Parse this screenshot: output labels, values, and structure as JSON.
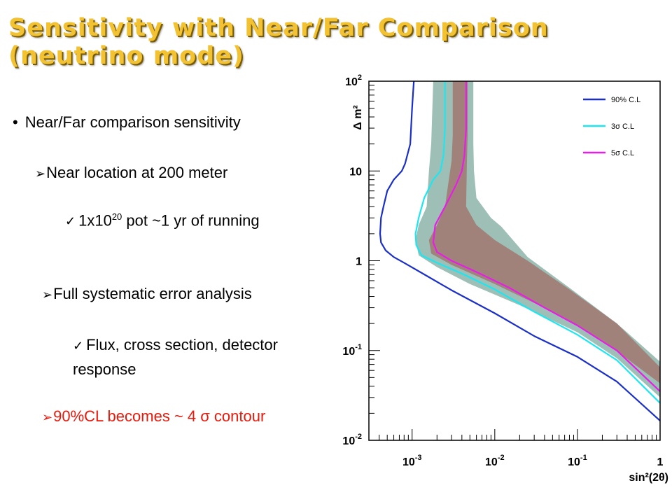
{
  "slide": {
    "title_line1": "Sensitivity with Near/Far Comparison",
    "title_line2": "(neutrino mode)",
    "bullets": {
      "b1_marker": "•",
      "b1": "Near/Far comparison sensitivity",
      "b2_marker": "➢",
      "b2": "Near location at 200 meter",
      "b3_marker": "✓",
      "b3_pre": "1x10",
      "b3_sup": "20",
      "b3_post": " pot ~1 yr of running",
      "b4_marker": "➢",
      "b4": "Full systematic error analysis",
      "b5_marker": "✓",
      "b5_line1": "Flux, cross section, detector",
      "b5_line2": "response",
      "b6_marker": "➢",
      "b6": "90%CL becomes ~ 4 σ contour"
    },
    "colors": {
      "title": "#f2c233",
      "highlight": "#e8190b"
    }
  },
  "chart_data": {
    "type": "line",
    "title": "",
    "xlabel": "sin²(2θ)",
    "ylabel": "Δ m²",
    "x_scale": "log",
    "y_scale": "log",
    "xlim": [
      0.0003,
      1
    ],
    "ylim": [
      0.01,
      100
    ],
    "x_ticks": [
      {
        "value": 0.001,
        "base": "10",
        "exp": "-3"
      },
      {
        "value": 0.01,
        "base": "10",
        "exp": "-2"
      },
      {
        "value": 0.1,
        "base": "10",
        "exp": "-1"
      },
      {
        "value": 1,
        "base": "1",
        "exp": ""
      }
    ],
    "y_ticks": [
      {
        "value": 0.01,
        "base": "10",
        "exp": "-2"
      },
      {
        "value": 0.1,
        "base": "10",
        "exp": "-1"
      },
      {
        "value": 1,
        "base": "1",
        "exp": ""
      },
      {
        "value": 10,
        "base": "10",
        "exp": ""
      },
      {
        "value": 100,
        "base": "10",
        "exp": "2"
      }
    ],
    "legend_position": "top-right",
    "series": [
      {
        "name": "90% C.L",
        "color": "#1a2fc8",
        "points": [
          [
            0.00105,
            100
          ],
          [
            0.001,
            50
          ],
          [
            0.00095,
            20
          ],
          [
            0.00082,
            12
          ],
          [
            0.00075,
            10
          ],
          [
            0.0006,
            8
          ],
          [
            0.0005,
            6
          ],
          [
            0.00045,
            4
          ],
          [
            0.00042,
            3
          ],
          [
            0.00041,
            2
          ],
          [
            0.00042,
            1.6
          ],
          [
            0.00048,
            1.3
          ],
          [
            0.0006,
            1.1
          ],
          [
            0.0008,
            0.95
          ],
          [
            0.0015,
            0.68
          ],
          [
            0.003,
            0.47
          ],
          [
            0.01,
            0.26
          ],
          [
            0.03,
            0.145
          ],
          [
            0.1,
            0.085
          ],
          [
            0.3,
            0.045
          ],
          [
            1,
            0.0165
          ]
        ]
      },
      {
        "name": "3σ C.L",
        "color": "#1ee6f0",
        "points": [
          [
            0.0025,
            100
          ],
          [
            0.0025,
            30
          ],
          [
            0.0024,
            15
          ],
          [
            0.0022,
            10
          ],
          [
            0.0018,
            8
          ],
          [
            0.0014,
            5
          ],
          [
            0.0012,
            3
          ],
          [
            0.0011,
            2
          ],
          [
            0.00112,
            1.5
          ],
          [
            0.0013,
            1.15
          ],
          [
            0.002,
            0.95
          ],
          [
            0.004,
            0.72
          ],
          [
            0.01,
            0.48
          ],
          [
            0.03,
            0.27
          ],
          [
            0.1,
            0.15
          ],
          [
            0.3,
            0.078
          ],
          [
            1,
            0.026
          ]
        ]
      },
      {
        "name": "5σ C.L",
        "color": "#e61ee6",
        "points": [
          [
            0.0045,
            100
          ],
          [
            0.0045,
            30
          ],
          [
            0.0043,
            15
          ],
          [
            0.004,
            10
          ],
          [
            0.0034,
            7
          ],
          [
            0.0025,
            4
          ],
          [
            0.0019,
            2.5
          ],
          [
            0.0018,
            1.6
          ],
          [
            0.002,
            1.25
          ],
          [
            0.003,
            1
          ],
          [
            0.006,
            0.75
          ],
          [
            0.015,
            0.5
          ],
          [
            0.04,
            0.3
          ],
          [
            0.1,
            0.19
          ],
          [
            0.3,
            0.1
          ],
          [
            1,
            0.035
          ]
        ]
      }
    ],
    "bands": [
      {
        "name": "outer",
        "color": "#9dbfb6",
        "lower": [
          [
            0.0018,
            100
          ],
          [
            0.0017,
            20
          ],
          [
            0.0016,
            10
          ],
          [
            0.0015,
            4
          ],
          [
            0.0012,
            2.5
          ],
          [
            0.0011,
            1.7
          ],
          [
            0.0012,
            1.15
          ],
          [
            0.002,
            0.85
          ],
          [
            0.005,
            0.55
          ],
          [
            0.02,
            0.32
          ],
          [
            0.1,
            0.16
          ],
          [
            0.3,
            0.082
          ],
          [
            1,
            0.03
          ]
        ],
        "upper": [
          [
            0.0055,
            100
          ],
          [
            0.0055,
            20
          ],
          [
            0.0056,
            10
          ],
          [
            0.006,
            5
          ],
          [
            0.009,
            3
          ],
          [
            0.012,
            2.4
          ],
          [
            0.025,
            1.1
          ],
          [
            0.08,
            0.5
          ],
          [
            0.3,
            0.2
          ],
          [
            1,
            0.075
          ]
        ]
      },
      {
        "name": "inner",
        "color": "#a0827a",
        "lower": [
          [
            0.0031,
            100
          ],
          [
            0.0031,
            25
          ],
          [
            0.003,
            13
          ],
          [
            0.0025,
            4
          ],
          [
            0.002,
            2.5
          ],
          [
            0.0016,
            1.7
          ],
          [
            0.0017,
            1.2
          ],
          [
            0.003,
            0.9
          ],
          [
            0.01,
            0.55
          ],
          [
            0.05,
            0.27
          ],
          [
            0.2,
            0.13
          ],
          [
            1,
            0.043
          ]
        ],
        "upper": [
          [
            0.0047,
            100
          ],
          [
            0.0047,
            25
          ],
          [
            0.0046,
            13
          ],
          [
            0.0045,
            4
          ],
          [
            0.006,
            2.5
          ],
          [
            0.01,
            1.7
          ],
          [
            0.025,
            1
          ],
          [
            0.08,
            0.48
          ],
          [
            0.3,
            0.2
          ],
          [
            1,
            0.065
          ]
        ]
      }
    ]
  }
}
